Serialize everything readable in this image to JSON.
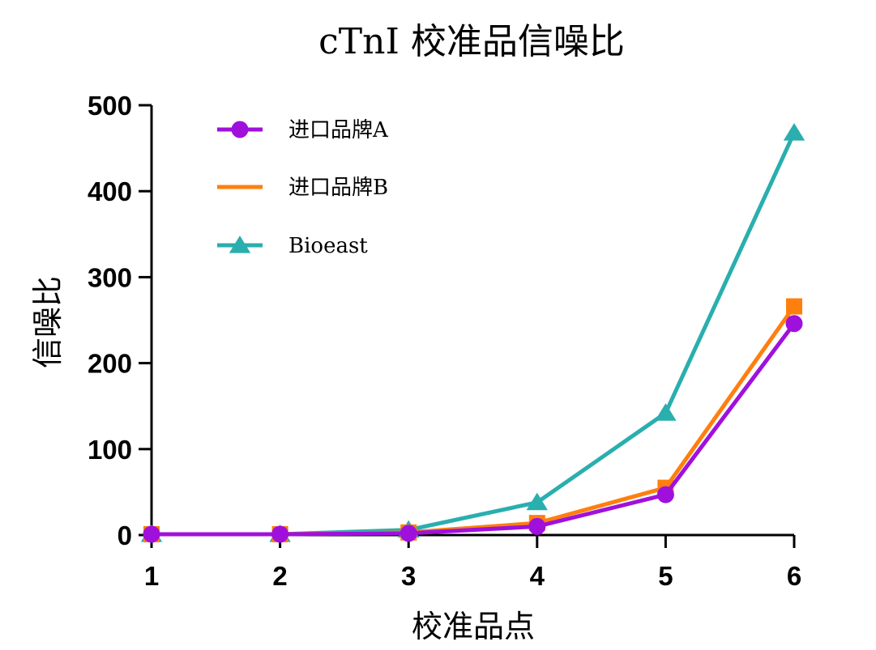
{
  "chart_data": {
    "type": "line",
    "title": "cTnI 校准品信噪比",
    "xlabel": "校准品点",
    "ylabel": "信噪比",
    "x": [
      1,
      2,
      3,
      4,
      5,
      6
    ],
    "x_ticks": [
      "1",
      "2",
      "3",
      "4",
      "5",
      "6"
    ],
    "ylim": [
      0,
      500
    ],
    "y_ticks": [
      "0",
      "100",
      "200",
      "300",
      "400",
      "500"
    ],
    "legend_position": "top-left",
    "series": [
      {
        "name": "进口品牌A",
        "marker": "circle",
        "color": "#a010dc",
        "values": [
          1,
          1,
          2,
          10,
          47,
          246
        ]
      },
      {
        "name": "进口品牌B",
        "marker": "square",
        "color": "#ff7f0e",
        "values": [
          1,
          1,
          3,
          14,
          55,
          266
        ]
      },
      {
        "name": "Bioeast",
        "marker": "triangle",
        "color": "#2aaeae",
        "values": [
          1,
          1,
          6,
          38,
          142,
          468
        ]
      }
    ]
  }
}
